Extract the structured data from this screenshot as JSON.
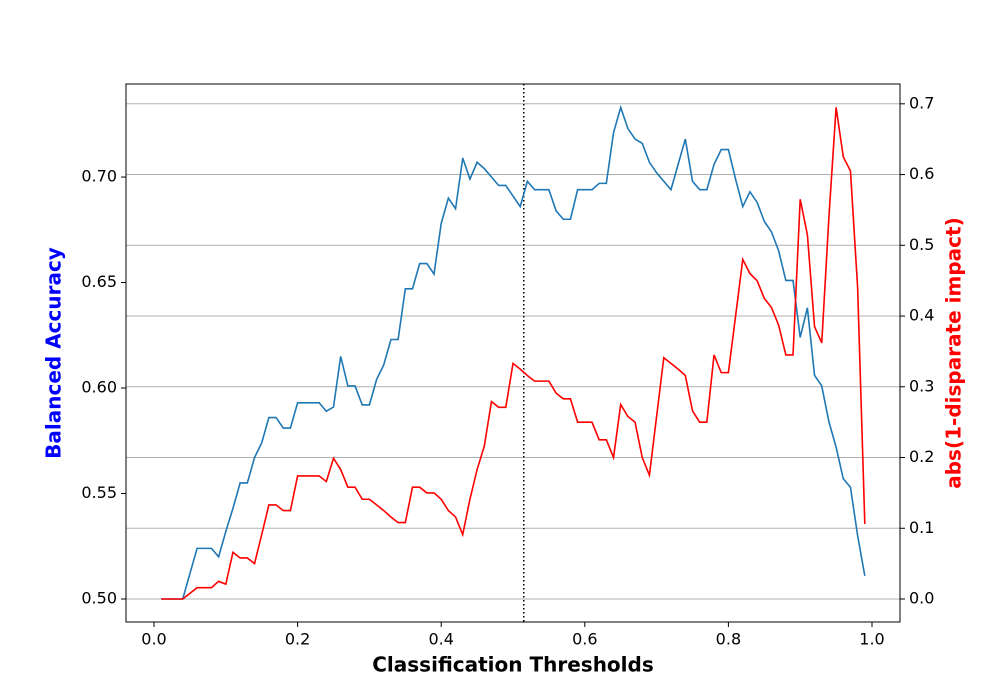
{
  "chart_data": {
    "type": "line",
    "xlabel": "Classification Thresholds",
    "ylabel": "Balanced Accuracy",
    "ylabel_color": "blue",
    "y2label": "abs(1-disparate impact)",
    "y2label_color": "red",
    "x": [
      0.01,
      0.02,
      0.03,
      0.04,
      0.05,
      0.06,
      0.07,
      0.08,
      0.09,
      0.1,
      0.11,
      0.12,
      0.13,
      0.14,
      0.15,
      0.16,
      0.17,
      0.18,
      0.19,
      0.2,
      0.21,
      0.22,
      0.23,
      0.24,
      0.25,
      0.26,
      0.27,
      0.28,
      0.29,
      0.3,
      0.31,
      0.32,
      0.33,
      0.34,
      0.35,
      0.36,
      0.37,
      0.38,
      0.39,
      0.4,
      0.41,
      0.42,
      0.43,
      0.44,
      0.45,
      0.46,
      0.47,
      0.48,
      0.49,
      0.5,
      0.51,
      0.52,
      0.53,
      0.54,
      0.55,
      0.56,
      0.57,
      0.58,
      0.59,
      0.6,
      0.61,
      0.62,
      0.63,
      0.64,
      0.65,
      0.66,
      0.67,
      0.68,
      0.69,
      0.7,
      0.71,
      0.72,
      0.73,
      0.74,
      0.75,
      0.76,
      0.77,
      0.78,
      0.79,
      0.8,
      0.81,
      0.82,
      0.83,
      0.84,
      0.85,
      0.86,
      0.87,
      0.88,
      0.89,
      0.9,
      0.91,
      0.92,
      0.93,
      0.94,
      0.95,
      0.96,
      0.97,
      0.98,
      0.99
    ],
    "series": [
      {
        "color": "#1f77b4",
        "axis": "y",
        "values": [
          0.5,
          0.5,
          0.5,
          0.5,
          0.512,
          0.524,
          0.524,
          0.524,
          0.52,
          0.532,
          0.543,
          0.555,
          0.555,
          0.567,
          0.574,
          0.586,
          0.586,
          0.581,
          0.581,
          0.593,
          0.593,
          0.593,
          0.593,
          0.589,
          0.591,
          0.615,
          0.601,
          0.601,
          0.592,
          0.592,
          0.604,
          0.611,
          0.623,
          0.623,
          0.647,
          0.647,
          0.659,
          0.659,
          0.654,
          0.678,
          0.69,
          0.685,
          0.709,
          0.699,
          0.707,
          0.704,
          0.7,
          0.696,
          0.696,
          0.691,
          0.686,
          0.698,
          0.694,
          0.694,
          0.694,
          0.684,
          0.68,
          0.68,
          0.694,
          0.694,
          0.694,
          0.697,
          0.697,
          0.721,
          0.733,
          0.723,
          0.718,
          0.716,
          0.707,
          0.702,
          0.698,
          0.694,
          0.706,
          0.718,
          0.698,
          0.694,
          0.694,
          0.706,
          0.713,
          0.713,
          0.699,
          0.686,
          0.693,
          0.688,
          0.679,
          0.674,
          0.665,
          0.651,
          0.651,
          0.624,
          0.638,
          0.606,
          0.601,
          0.584,
          0.572,
          0.557,
          0.553,
          0.53,
          0.511
        ]
      },
      {
        "color": "red",
        "axis": "y2",
        "values": [
          0,
          0,
          0,
          0,
          0.008,
          0.016,
          0.016,
          0.016,
          0.025,
          0.021,
          0.066,
          0.058,
          0.058,
          0.05,
          0.091,
          0.133,
          0.133,
          0.125,
          0.125,
          0.174,
          0.174,
          0.174,
          0.174,
          0.166,
          0.199,
          0.183,
          0.158,
          0.158,
          0.141,
          0.141,
          0.133,
          0.125,
          0.116,
          0.108,
          0.108,
          0.158,
          0.158,
          0.15,
          0.15,
          0.141,
          0.125,
          0.116,
          0.091,
          0.141,
          0.183,
          0.216,
          0.279,
          0.271,
          0.271,
          0.333,
          0.325,
          0.316,
          0.308,
          0.308,
          0.308,
          0.291,
          0.283,
          0.283,
          0.25,
          0.25,
          0.25,
          0.225,
          0.225,
          0.2,
          0.275,
          0.258,
          0.25,
          0.2,
          0.175,
          0.258,
          0.341,
          0.333,
          0.325,
          0.316,
          0.266,
          0.25,
          0.25,
          0.345,
          0.32,
          0.32,
          0.4,
          0.48,
          0.46,
          0.45,
          0.425,
          0.412,
          0.387,
          0.345,
          0.345,
          0.565,
          0.515,
          0.385,
          0.362,
          0.54,
          0.695,
          0.625,
          0.605,
          0.44,
          0.106
        ]
      }
    ],
    "vline_x": 0.515,
    "xlim": [
      -0.039,
      1.039
    ],
    "xticks": [
      {
        "value": 0.0,
        "label": "0.0"
      },
      0.2,
      0.4,
      0.6,
      0.8,
      {
        "value": 1.0,
        "label": "1.0"
      }
    ],
    "ylim": [
      0.4891,
      0.7441
    ],
    "yticks": [
      {
        "value": 0.5,
        "label": "0.50"
      },
      0.55,
      {
        "value": 0.6,
        "label": "0.60"
      },
      0.65,
      {
        "value": 0.7,
        "label": "0.70"
      }
    ],
    "y2lim": [
      -0.0325,
      0.728
    ],
    "y2ticks": [
      {
        "value": 0,
        "label": "0.0"
      },
      0.1,
      0.2,
      0.3,
      0.4,
      0.5,
      0.6,
      0.7
    ],
    "grid": "y2"
  }
}
